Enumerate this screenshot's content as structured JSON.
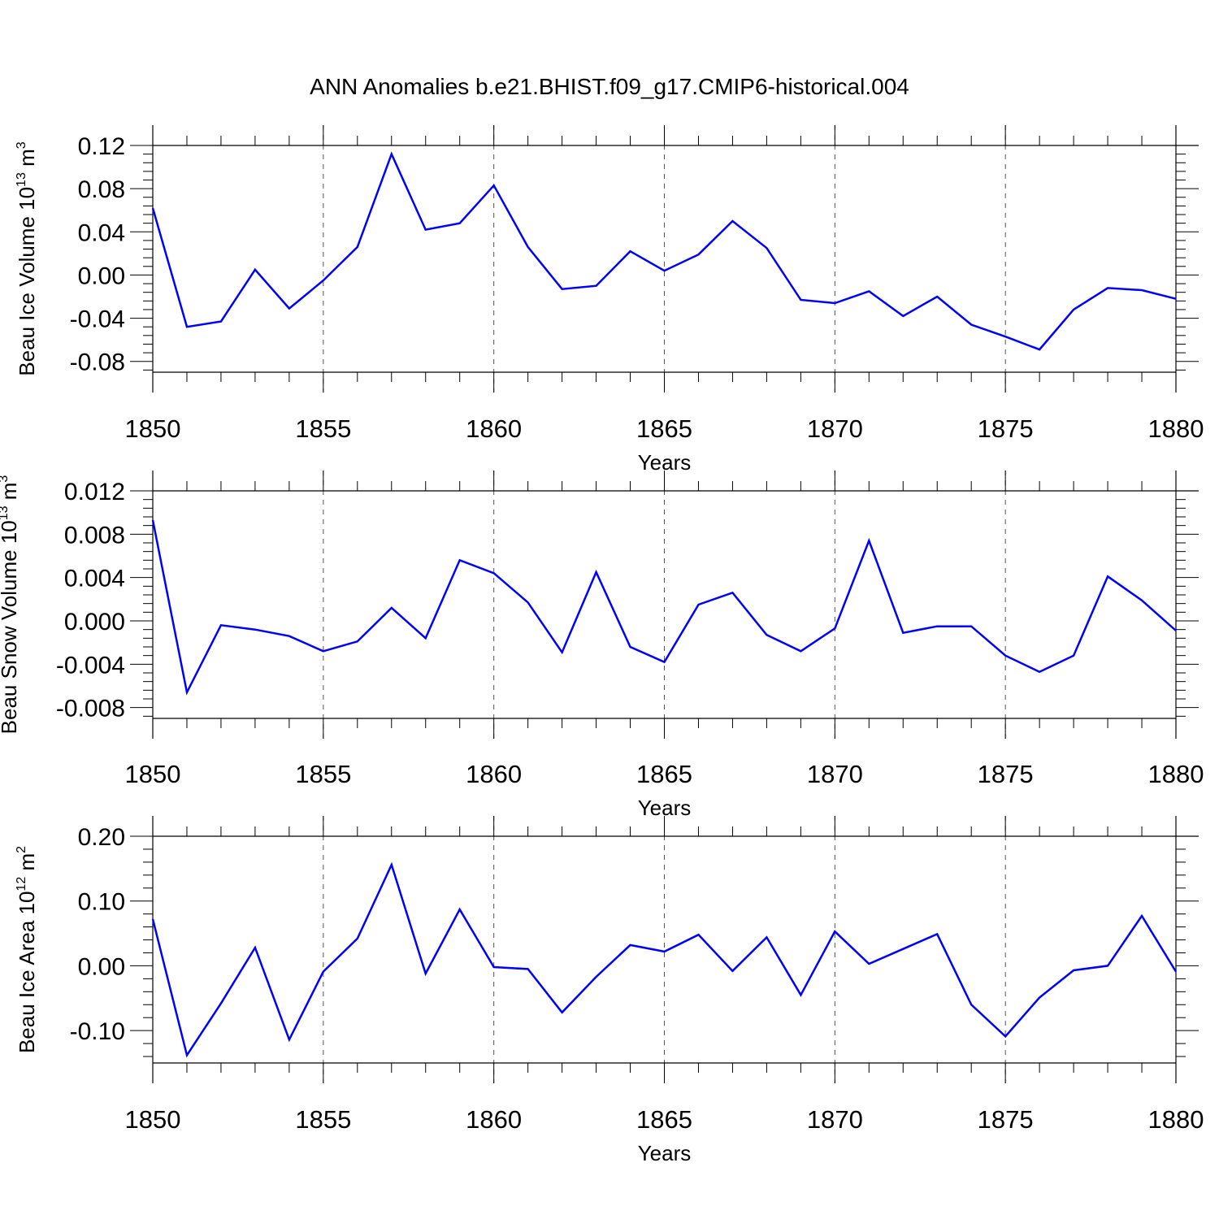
{
  "title": "ANN Anomalies b.e21.BHIST.f09_g17.CMIP6-historical.004",
  "colors": {
    "line": "#0000ff",
    "axis": "#000000",
    "grid": "#555555"
  },
  "chart_data": [
    {
      "type": "line",
      "ylabel": {
        "text": "Beau Ice Volume 10",
        "sup": "13",
        "unit": " m",
        "unit_sup": "3"
      },
      "xlabel": "Years",
      "xlim": [
        1850,
        1880
      ],
      "ylim": [
        -0.09,
        0.12
      ],
      "yticks": [
        "0.12",
        "0.08",
        "0.04",
        "0.00",
        "-0.04",
        "-0.08"
      ],
      "xticks": [
        "1850",
        "1855",
        "1860",
        "1865",
        "1870",
        "1875",
        "1880"
      ],
      "grid": "dashed vertical at major x ticks",
      "x": [
        1850,
        1851,
        1852,
        1853,
        1854,
        1855,
        1856,
        1857,
        1858,
        1859,
        1860,
        1861,
        1862,
        1863,
        1864,
        1865,
        1866,
        1867,
        1868,
        1869,
        1870,
        1871,
        1872,
        1873,
        1874,
        1875,
        1876,
        1877,
        1878,
        1879,
        1880
      ],
      "y": [
        0.062,
        -0.048,
        -0.043,
        0.005,
        -0.031,
        -0.005,
        0.026,
        0.112,
        0.042,
        0.048,
        0.083,
        0.026,
        -0.013,
        -0.01,
        0.022,
        0.004,
        0.019,
        0.05,
        0.025,
        -0.023,
        -0.026,
        -0.015,
        -0.038,
        -0.02,
        -0.046,
        -0.057,
        -0.069,
        -0.032,
        -0.012,
        -0.014,
        -0.022
      ]
    },
    {
      "type": "line",
      "ylabel": {
        "text": "Beau Snow Volume 10",
        "sup": "13",
        "unit": " m",
        "unit_sup": "3"
      },
      "xlabel": "Years",
      "xlim": [
        1850,
        1880
      ],
      "ylim": [
        -0.009,
        0.012
      ],
      "yticks": [
        "0.012",
        "0.008",
        "0.004",
        "0.000",
        "-0.004",
        "-0.008"
      ],
      "xticks": [
        "1850",
        "1855",
        "1860",
        "1865",
        "1870",
        "1875",
        "1880"
      ],
      "grid": "dashed vertical at major x ticks",
      "x": [
        1850,
        1851,
        1852,
        1853,
        1854,
        1855,
        1856,
        1857,
        1858,
        1859,
        1860,
        1861,
        1862,
        1863,
        1864,
        1865,
        1866,
        1867,
        1868,
        1869,
        1870,
        1871,
        1872,
        1873,
        1874,
        1875,
        1876,
        1877,
        1878,
        1879,
        1880
      ],
      "y": [
        0.0093,
        -0.0066,
        -0.0004,
        -0.0008,
        -0.0014,
        -0.0028,
        -0.0019,
        0.0012,
        -0.0016,
        0.0056,
        0.0044,
        0.0017,
        -0.0029,
        0.0045,
        -0.0024,
        -0.0038,
        0.0015,
        0.0026,
        -0.0013,
        -0.0028,
        -0.0007,
        0.0074,
        -0.0011,
        -0.0005,
        -0.0005,
        -0.0032,
        -0.0047,
        -0.0032,
        0.0041,
        0.0019,
        -0.0009
      ]
    },
    {
      "type": "line",
      "ylabel": {
        "text": "Beau Ice Area 10",
        "sup": "12",
        "unit": " m",
        "unit_sup": "2"
      },
      "xlabel": "Years",
      "xlim": [
        1850,
        1880
      ],
      "ylim": [
        -0.15,
        0.2
      ],
      "yticks": [
        "0.20",
        "0.10",
        "0.00",
        "-0.10"
      ],
      "xticks": [
        "1850",
        "1855",
        "1860",
        "1865",
        "1870",
        "1875",
        "1880"
      ],
      "grid": "dashed vertical at major x ticks",
      "x": [
        1850,
        1851,
        1852,
        1853,
        1854,
        1855,
        1856,
        1857,
        1858,
        1859,
        1860,
        1861,
        1862,
        1863,
        1864,
        1865,
        1866,
        1867,
        1868,
        1869,
        1870,
        1871,
        1872,
        1873,
        1874,
        1875,
        1876,
        1877,
        1878,
        1879,
        1880
      ],
      "y": [
        0.072,
        -0.138,
        -0.058,
        0.028,
        -0.114,
        -0.009,
        0.042,
        0.156,
        -0.012,
        0.087,
        -0.002,
        -0.005,
        -0.072,
        -0.017,
        0.032,
        0.022,
        0.048,
        -0.008,
        0.044,
        -0.045,
        0.053,
        0.003,
        0.026,
        0.049,
        -0.06,
        -0.109,
        -0.049,
        -0.007,
        0.0,
        0.077,
        -0.009
      ]
    }
  ]
}
